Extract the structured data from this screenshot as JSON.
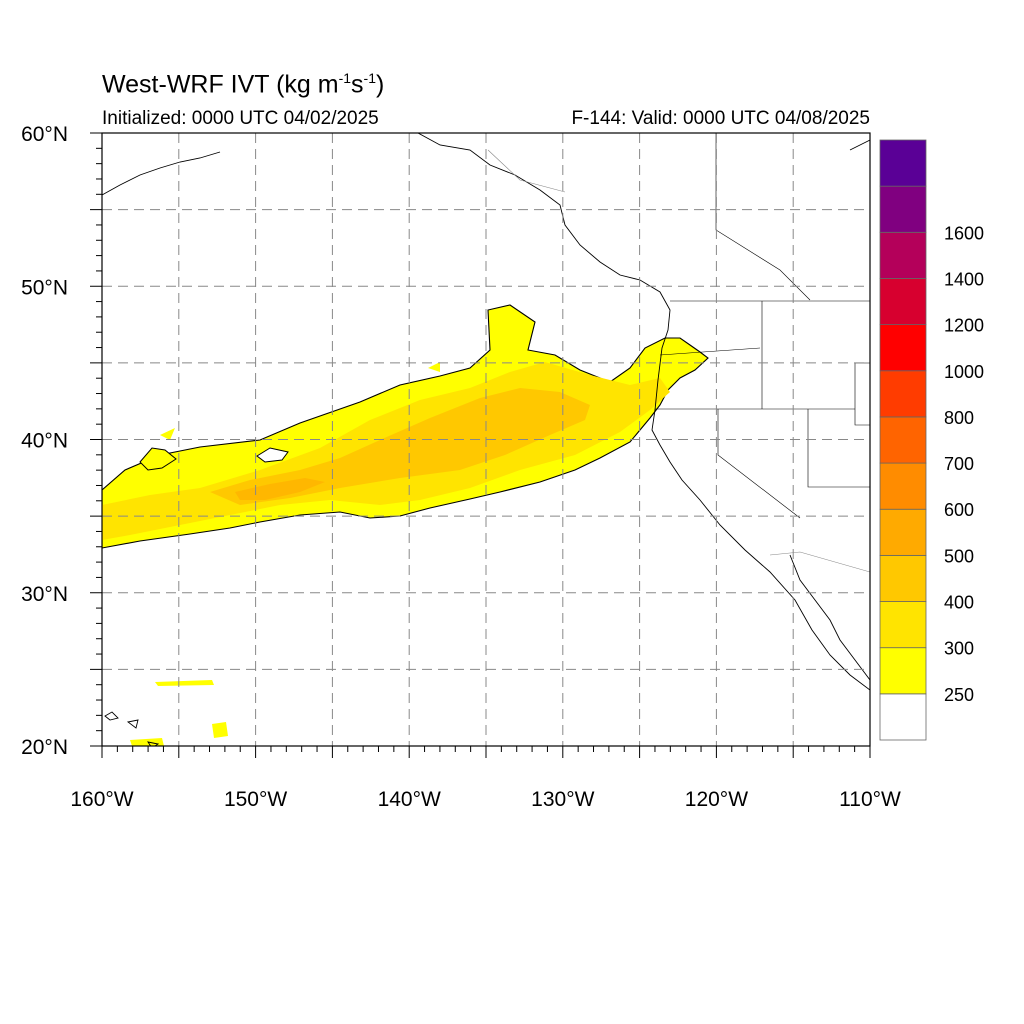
{
  "header": {
    "title_main": "West-WRF IVT (kg m",
    "title_exp1": "-1",
    "title_mid": "s",
    "title_exp2": "-1",
    "title_end": ")",
    "initialized": "Initialized: 0000 UTC 04/02/2025",
    "valid": "F-144: Valid: 0000 UTC 04/08/2025"
  },
  "map": {
    "lon_range": [
      -160,
      -110
    ],
    "lat_range": [
      20,
      60
    ],
    "lon_ticks": [
      {
        "lon": -160,
        "label": "160°W"
      },
      {
        "lon": -150,
        "label": "150°W"
      },
      {
        "lon": -140,
        "label": "140°W"
      },
      {
        "lon": -130,
        "label": "130°W"
      },
      {
        "lon": -120,
        "label": "120°W"
      },
      {
        "lon": -110,
        "label": "110°W"
      }
    ],
    "lat_ticks": [
      {
        "lat": 60,
        "label": "60°N"
      },
      {
        "lat": 50,
        "label": "50°N"
      },
      {
        "lat": 40,
        "label": "40°N"
      },
      {
        "lat": 30,
        "label": "30°N"
      },
      {
        "lat": 20,
        "label": "20°N"
      }
    ],
    "grid_lons": [
      -155,
      -150,
      -145,
      -140,
      -135,
      -130,
      -125,
      -120,
      -115
    ],
    "grid_lats": [
      55,
      50,
      45,
      40,
      35,
      30,
      25
    ]
  },
  "colorbar": {
    "colors": [
      "#ffffff",
      "#ffff00",
      "#ffe400",
      "#ffc800",
      "#ffaa00",
      "#ff8c00",
      "#ff6400",
      "#ff3c00",
      "#ff0000",
      "#d7002f",
      "#b4005a",
      "#800080",
      "#5a0096"
    ],
    "labels": [
      "250",
      "300",
      "400",
      "500",
      "600",
      "700",
      "800",
      "1000",
      "1200",
      "1400",
      "1600"
    ]
  }
}
